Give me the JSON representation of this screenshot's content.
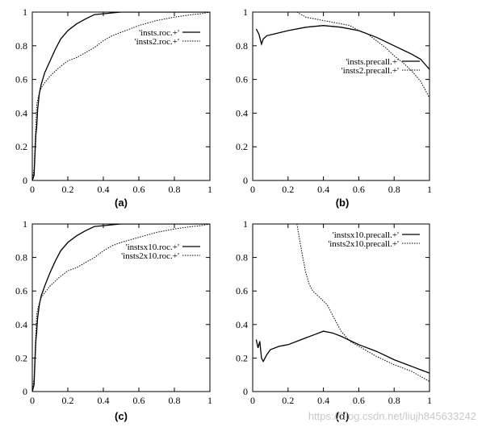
{
  "watermark": "https://blog.csdn.net/liujh845633242",
  "chart_data": [
    {
      "type": "line",
      "caption": "(a)",
      "xlim": [
        0,
        1
      ],
      "ylim": [
        0,
        1
      ],
      "xticks": [
        "0",
        "0.2",
        "0.4",
        "0.6",
        "0.8",
        "1"
      ],
      "yticks": [
        "0",
        "0.2",
        "0.4",
        "0.6",
        "0.8",
        "1"
      ],
      "legend_position": "top-right",
      "grid": false,
      "series": [
        {
          "name": "'insts.roc.+'",
          "style": "solid",
          "points": [
            [
              0,
              0
            ],
            [
              0.01,
              0.03
            ],
            [
              0.015,
              0.15
            ],
            [
              0.02,
              0.27
            ],
            [
              0.025,
              0.32
            ],
            [
              0.03,
              0.42
            ],
            [
              0.04,
              0.52
            ],
            [
              0.05,
              0.57
            ],
            [
              0.07,
              0.64
            ],
            [
              0.1,
              0.71
            ],
            [
              0.13,
              0.78
            ],
            [
              0.16,
              0.84
            ],
            [
              0.2,
              0.89
            ],
            [
              0.25,
              0.93
            ],
            [
              0.3,
              0.96
            ],
            [
              0.35,
              0.985
            ],
            [
              0.4,
              0.99
            ],
            [
              0.45,
              0.995
            ],
            [
              0.5,
              1
            ],
            [
              1,
              1
            ]
          ]
        },
        {
          "name": "'insts2.roc.+'",
          "style": "dashed",
          "points": [
            [
              0,
              0
            ],
            [
              0.01,
              0.07
            ],
            [
              0.015,
              0.2
            ],
            [
              0.02,
              0.33
            ],
            [
              0.025,
              0.45
            ],
            [
              0.035,
              0.5
            ],
            [
              0.05,
              0.55
            ],
            [
              0.07,
              0.58
            ],
            [
              0.1,
              0.62
            ],
            [
              0.15,
              0.67
            ],
            [
              0.2,
              0.71
            ],
            [
              0.25,
              0.73
            ],
            [
              0.3,
              0.76
            ],
            [
              0.35,
              0.79
            ],
            [
              0.4,
              0.83
            ],
            [
              0.45,
              0.86
            ],
            [
              0.5,
              0.88
            ],
            [
              0.6,
              0.92
            ],
            [
              0.7,
              0.95
            ],
            [
              0.8,
              0.97
            ],
            [
              0.9,
              0.985
            ],
            [
              0.95,
              0.99
            ],
            [
              1,
              1
            ]
          ]
        }
      ]
    },
    {
      "type": "line",
      "caption": "(b)",
      "xlim": [
        0,
        1
      ],
      "ylim": [
        0,
        1
      ],
      "xticks": [
        "0",
        "0.2",
        "0.4",
        "0.6",
        "0.8",
        "1"
      ],
      "yticks": [
        "0",
        "0.2",
        "0.4",
        "0.6",
        "0.8",
        "1"
      ],
      "legend_position": "center-right",
      "grid": false,
      "series": [
        {
          "name": "'insts.precall.+'",
          "style": "solid",
          "points": [
            [
              0.02,
              0.9
            ],
            [
              0.035,
              0.87
            ],
            [
              0.05,
              0.81
            ],
            [
              0.06,
              0.84
            ],
            [
              0.08,
              0.86
            ],
            [
              0.12,
              0.87
            ],
            [
              0.2,
              0.89
            ],
            [
              0.3,
              0.91
            ],
            [
              0.4,
              0.92
            ],
            [
              0.5,
              0.91
            ],
            [
              0.6,
              0.89
            ],
            [
              0.7,
              0.85
            ],
            [
              0.8,
              0.8
            ],
            [
              0.9,
              0.75
            ],
            [
              0.95,
              0.72
            ],
            [
              1,
              0.66
            ]
          ]
        },
        {
          "name": "'insts2.precall.+'",
          "style": "dashed",
          "points": [
            [
              0.25,
              1
            ],
            [
              0.3,
              0.97
            ],
            [
              0.35,
              0.96
            ],
            [
              0.4,
              0.95
            ],
            [
              0.45,
              0.94
            ],
            [
              0.5,
              0.93
            ],
            [
              0.55,
              0.92
            ],
            [
              0.6,
              0.89
            ],
            [
              0.65,
              0.87
            ],
            [
              0.7,
              0.83
            ],
            [
              0.75,
              0.79
            ],
            [
              0.8,
              0.74
            ],
            [
              0.85,
              0.7
            ],
            [
              0.9,
              0.65
            ],
            [
              0.95,
              0.59
            ],
            [
              0.98,
              0.53
            ],
            [
              1,
              0.49
            ]
          ]
        }
      ]
    },
    {
      "type": "line",
      "caption": "(c)",
      "xlim": [
        0,
        1
      ],
      "ylim": [
        0,
        1
      ],
      "xticks": [
        "0",
        "0.2",
        "0.4",
        "0.6",
        "0.8",
        "1"
      ],
      "yticks": [
        "0",
        "0.2",
        "0.4",
        "0.6",
        "0.8",
        "1"
      ],
      "legend_position": "top-right",
      "grid": false,
      "series": [
        {
          "name": "'instsx10.roc.+'",
          "style": "solid",
          "points": [
            [
              0,
              0
            ],
            [
              0.01,
              0.04
            ],
            [
              0.015,
              0.18
            ],
            [
              0.02,
              0.3
            ],
            [
              0.025,
              0.36
            ],
            [
              0.03,
              0.44
            ],
            [
              0.04,
              0.52
            ],
            [
              0.05,
              0.57
            ],
            [
              0.07,
              0.63
            ],
            [
              0.1,
              0.71
            ],
            [
              0.13,
              0.78
            ],
            [
              0.16,
              0.84
            ],
            [
              0.2,
              0.89
            ],
            [
              0.25,
              0.93
            ],
            [
              0.3,
              0.96
            ],
            [
              0.35,
              0.985
            ],
            [
              0.4,
              0.99
            ],
            [
              0.45,
              0.995
            ],
            [
              0.5,
              1
            ],
            [
              1,
              1
            ]
          ]
        },
        {
          "name": "'insts2x10.roc.+'",
          "style": "dashed",
          "points": [
            [
              0,
              0
            ],
            [
              0.01,
              0.08
            ],
            [
              0.015,
              0.22
            ],
            [
              0.02,
              0.35
            ],
            [
              0.025,
              0.46
            ],
            [
              0.035,
              0.51
            ],
            [
              0.05,
              0.56
            ],
            [
              0.07,
              0.59
            ],
            [
              0.1,
              0.63
            ],
            [
              0.15,
              0.68
            ],
            [
              0.2,
              0.72
            ],
            [
              0.25,
              0.74
            ],
            [
              0.3,
              0.77
            ],
            [
              0.35,
              0.8
            ],
            [
              0.4,
              0.84
            ],
            [
              0.45,
              0.87
            ],
            [
              0.5,
              0.89
            ],
            [
              0.6,
              0.92
            ],
            [
              0.7,
              0.95
            ],
            [
              0.8,
              0.97
            ],
            [
              0.9,
              0.985
            ],
            [
              0.95,
              0.99
            ],
            [
              1,
              1
            ]
          ]
        }
      ]
    },
    {
      "type": "line",
      "caption": "(d)",
      "xlim": [
        0,
        1
      ],
      "ylim": [
        0,
        1
      ],
      "xticks": [
        "0",
        "0.2",
        "0.4",
        "0.6",
        "0.8",
        "1"
      ],
      "yticks": [
        "0",
        "0.2",
        "0.4",
        "0.6",
        "0.8",
        "1"
      ],
      "legend_position": "top-right",
      "grid": false,
      "series": [
        {
          "name": "'instsx10.precall.+'",
          "style": "solid",
          "points": [
            [
              0.02,
              0.31
            ],
            [
              0.03,
              0.26
            ],
            [
              0.04,
              0.3
            ],
            [
              0.05,
              0.2
            ],
            [
              0.06,
              0.18
            ],
            [
              0.08,
              0.22
            ],
            [
              0.1,
              0.25
            ],
            [
              0.15,
              0.27
            ],
            [
              0.2,
              0.28
            ],
            [
              0.25,
              0.3
            ],
            [
              0.3,
              0.32
            ],
            [
              0.35,
              0.34
            ],
            [
              0.4,
              0.36
            ],
            [
              0.45,
              0.35
            ],
            [
              0.5,
              0.33
            ],
            [
              0.6,
              0.28
            ],
            [
              0.7,
              0.24
            ],
            [
              0.8,
              0.19
            ],
            [
              0.9,
              0.15
            ],
            [
              0.95,
              0.13
            ],
            [
              1,
              0.11
            ]
          ]
        },
        {
          "name": "'insts2x10.precall.+'",
          "style": "dashed",
          "points": [
            [
              0.25,
              1
            ],
            [
              0.26,
              0.94
            ],
            [
              0.28,
              0.82
            ],
            [
              0.3,
              0.71
            ],
            [
              0.32,
              0.64
            ],
            [
              0.34,
              0.6
            ],
            [
              0.36,
              0.58
            ],
            [
              0.38,
              0.56
            ],
            [
              0.4,
              0.54
            ],
            [
              0.42,
              0.52
            ],
            [
              0.44,
              0.48
            ],
            [
              0.46,
              0.44
            ],
            [
              0.48,
              0.4
            ],
            [
              0.5,
              0.36
            ],
            [
              0.55,
              0.3
            ],
            [
              0.6,
              0.27
            ],
            [
              0.7,
              0.21
            ],
            [
              0.8,
              0.16
            ],
            [
              0.9,
              0.12
            ],
            [
              0.95,
              0.09
            ],
            [
              1,
              0.06
            ]
          ]
        }
      ]
    }
  ]
}
